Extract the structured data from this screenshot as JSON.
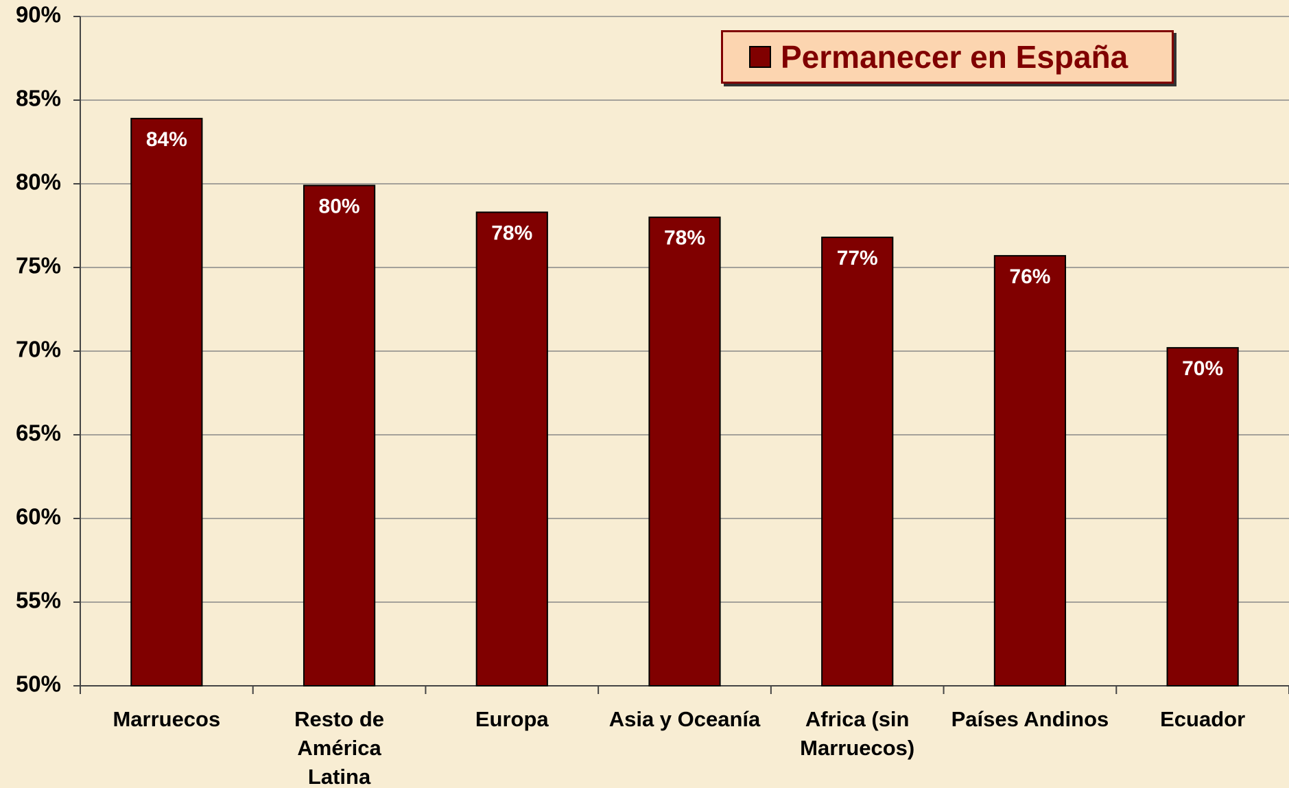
{
  "chart_data": {
    "type": "bar",
    "categories": [
      "Marruecos",
      "Resto de América Latina",
      "Europa",
      "Asia y Oceanía",
      "Africa (sin Marruecos)",
      "Países Andinos",
      "Ecuador"
    ],
    "series": [
      {
        "name": "Permanecer en España",
        "color": "#800000",
        "values": [
          83.9,
          79.9,
          78.3,
          78.0,
          76.8,
          75.7,
          70.2
        ],
        "value_labels": [
          "84%",
          "80%",
          "78%",
          "78%",
          "77%",
          "76%",
          "70%"
        ]
      }
    ],
    "ylim": [
      50,
      90
    ],
    "yticks": [
      {
        "value": 50,
        "label": "50%"
      },
      {
        "value": 55,
        "label": "55%"
      },
      {
        "value": 60,
        "label": "60%"
      },
      {
        "value": 65,
        "label": "65%"
      },
      {
        "value": 70,
        "label": "70%"
      },
      {
        "value": 75,
        "label": "75%"
      },
      {
        "value": 80,
        "label": "80%"
      },
      {
        "value": 85,
        "label": "85%"
      },
      {
        "value": 90,
        "label": "90%"
      }
    ],
    "grid": true,
    "legend": "top-right"
  }
}
